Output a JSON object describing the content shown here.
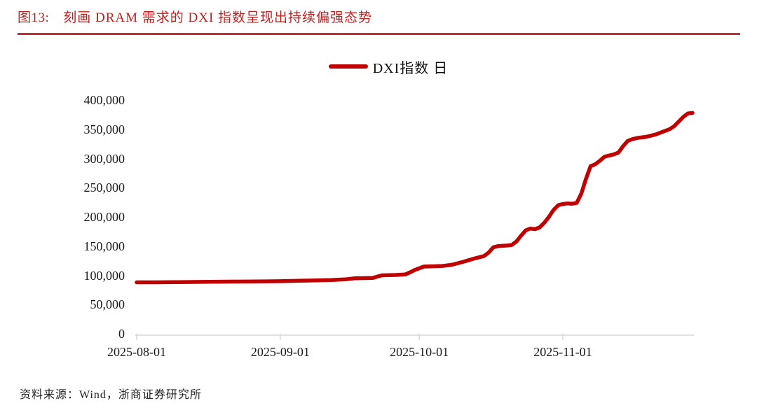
{
  "header": {
    "figure_label": "图13:",
    "title": "刻画 DRAM 需求的 DXI 指数呈现出持续偏强态势"
  },
  "legend": {
    "label": "DXI指数 日"
  },
  "footer": {
    "source": "资料来源：Wind，浙商证券研究所"
  },
  "colors": {
    "series_line": "#C00000",
    "title_red": "#BE201E",
    "rule_red": "#C23030",
    "axis_gray": "#D9D9D9",
    "label_text": "#1a1a1a"
  },
  "chart_data": {
    "type": "line",
    "title": "DXI指数 日",
    "xlabel": "",
    "ylabel": "",
    "ylim": [
      0,
      400000
    ],
    "y_ticks": [
      0,
      50000,
      100000,
      150000,
      200000,
      250000,
      300000,
      350000,
      400000
    ],
    "x_ticks": [
      "2025-08-01",
      "2025-09-01",
      "2025-10-01",
      "2025-11-01"
    ],
    "x_range": [
      "2025-08-01",
      "2025-11-29"
    ],
    "grid": false,
    "legend_position": "top-center",
    "series": [
      {
        "name": "DXI指数 日",
        "color": "#C00000",
        "points": [
          [
            "2025-08-01",
            88000
          ],
          [
            "2025-08-05",
            88000
          ],
          [
            "2025-08-09",
            88300
          ],
          [
            "2025-08-13",
            88600
          ],
          [
            "2025-08-17",
            89000
          ],
          [
            "2025-08-21",
            89200
          ],
          [
            "2025-08-25",
            89400
          ],
          [
            "2025-08-29",
            89700
          ],
          [
            "2025-09-01",
            90000
          ],
          [
            "2025-09-05",
            90600
          ],
          [
            "2025-09-09",
            91200
          ],
          [
            "2025-09-12",
            91800
          ],
          [
            "2025-09-15",
            93000
          ],
          [
            "2025-09-17",
            94800
          ],
          [
            "2025-09-19",
            95200
          ],
          [
            "2025-09-21",
            95600
          ],
          [
            "2025-09-22",
            98000
          ],
          [
            "2025-09-23",
            100000
          ],
          [
            "2025-09-26",
            100600
          ],
          [
            "2025-09-28",
            101500
          ],
          [
            "2025-09-29",
            105000
          ],
          [
            "2025-09-30",
            109000
          ],
          [
            "2025-10-01",
            112000
          ],
          [
            "2025-10-02",
            115000
          ],
          [
            "2025-10-04",
            115500
          ],
          [
            "2025-10-06",
            116000
          ],
          [
            "2025-10-08",
            118000
          ],
          [
            "2025-10-10",
            122000
          ],
          [
            "2025-10-13",
            129000
          ],
          [
            "2025-10-15",
            133000
          ],
          [
            "2025-10-16",
            139000
          ],
          [
            "2025-10-17",
            148000
          ],
          [
            "2025-10-18",
            150000
          ],
          [
            "2025-10-20",
            151000
          ],
          [
            "2025-10-21",
            152000
          ],
          [
            "2025-10-22",
            158000
          ],
          [
            "2025-10-23",
            168000
          ],
          [
            "2025-10-24",
            177000
          ],
          [
            "2025-10-25",
            180000
          ],
          [
            "2025-10-26",
            179000
          ],
          [
            "2025-10-27",
            182000
          ],
          [
            "2025-10-28",
            190000
          ],
          [
            "2025-10-29",
            200000
          ],
          [
            "2025-10-30",
            212000
          ],
          [
            "2025-10-31",
            220000
          ],
          [
            "2025-11-01",
            222000
          ],
          [
            "2025-11-02",
            223000
          ],
          [
            "2025-11-03",
            222500
          ],
          [
            "2025-11-04",
            224000
          ],
          [
            "2025-11-05",
            240000
          ],
          [
            "2025-11-06",
            265000
          ],
          [
            "2025-11-07",
            287000
          ],
          [
            "2025-11-08",
            290000
          ],
          [
            "2025-11-09",
            296000
          ],
          [
            "2025-11-10",
            303000
          ],
          [
            "2025-11-11",
            305000
          ],
          [
            "2025-11-12",
            307000
          ],
          [
            "2025-11-13",
            310000
          ],
          [
            "2025-11-14",
            321000
          ],
          [
            "2025-11-15",
            330000
          ],
          [
            "2025-11-16",
            333000
          ],
          [
            "2025-11-17",
            335000
          ],
          [
            "2025-11-18",
            336000
          ],
          [
            "2025-11-19",
            337000
          ],
          [
            "2025-11-20",
            339000
          ],
          [
            "2025-11-21",
            341000
          ],
          [
            "2025-11-22",
            344000
          ],
          [
            "2025-11-23",
            347000
          ],
          [
            "2025-11-24",
            350000
          ],
          [
            "2025-11-25",
            355000
          ],
          [
            "2025-11-26",
            363000
          ],
          [
            "2025-11-27",
            371000
          ],
          [
            "2025-11-28",
            377000
          ],
          [
            "2025-11-29",
            378000
          ]
        ]
      }
    ]
  }
}
